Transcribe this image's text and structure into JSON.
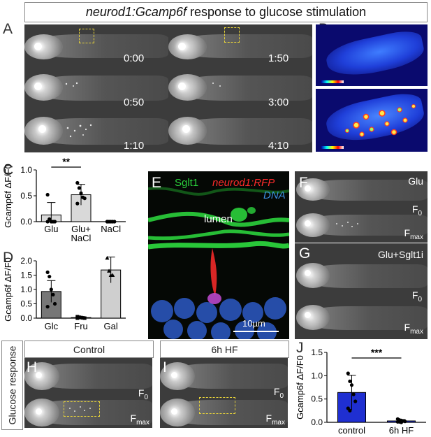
{
  "figure": {
    "title_italic": "neurod1:Gcamp6f",
    "title_rest": " response to glucose stimulation",
    "side_label": "Glucose response"
  },
  "panels": {
    "A": {
      "label": "A",
      "times": [
        "0:00",
        "0:50",
        "1:10",
        "1:50",
        "3:00",
        "4:10"
      ]
    },
    "B": {
      "label": "B"
    },
    "C": {
      "label": "C"
    },
    "D": {
      "label": "D"
    },
    "E": {
      "label": "E",
      "legend": {
        "green": "Sglt1",
        "red": "neurod1:RFP",
        "blue": "DNA"
      },
      "lumen": "lumen",
      "scale": "10µm"
    },
    "F": {
      "label": "F",
      "condition": "Glu",
      "f0": "F",
      "f0_sub": "0",
      "fmax": "F",
      "fmax_sub": "max"
    },
    "G": {
      "label": "G",
      "condition": "Glu+Sglt1i",
      "f0": "F",
      "f0_sub": "0",
      "fmax": "F",
      "fmax_sub": "max"
    },
    "H": {
      "label": "H",
      "header": "Control",
      "f0": "F",
      "f0_sub": "0",
      "fmax": "F",
      "fmax_sub": "max"
    },
    "I": {
      "label": "I",
      "header": "6h HF",
      "f0": "F",
      "f0_sub": "0",
      "fmax": "F",
      "fmax_sub": "max"
    },
    "J": {
      "label": "J"
    }
  },
  "colors": {
    "bar_C": "#d9d9d9",
    "bar_D_glc": "#777777",
    "bar_D_gal": "#cfcfcf",
    "bar_J": "#1f2fd1",
    "yellow_box": "#e6d23a",
    "sglt1": "#27d33a",
    "rfp": "#ff2b2b",
    "dna": "#3b8ee0"
  },
  "chart_data": [
    {
      "panel": "C",
      "type": "bar",
      "ylabel": "Gcamp6f ΔF/F0",
      "ylim": [
        0,
        1.0
      ],
      "yticks": [
        "0.0",
        "0.5",
        "1.0"
      ],
      "categories": [
        "Glu",
        "Glu+\nNaCl",
        "NaCl"
      ],
      "category_lines": [
        [
          "Glu"
        ],
        [
          "Glu+",
          "NaCl"
        ],
        [
          "NaCl"
        ]
      ],
      "values": [
        0.13,
        0.52,
        0.0
      ],
      "errors": [
        0.24,
        0.2,
        0.0
      ],
      "points": [
        [
          0.52,
          0.05,
          0.0,
          0.0,
          0.0,
          0.0
        ],
        [
          0.75,
          0.65,
          0.55,
          0.47,
          0.45,
          0.35
        ],
        [
          0,
          0,
          0,
          0,
          0,
          0
        ]
      ],
      "significance": {
        "from": 0,
        "to": 1,
        "text": "**"
      }
    },
    {
      "panel": "D",
      "type": "bar",
      "ylabel": "Gcamp6f ΔF/F0",
      "ylim": [
        0,
        2.0
      ],
      "yticks": [
        "0.0",
        "0.5",
        "1.0",
        "1.5",
        "2.0"
      ],
      "categories": [
        "Glc",
        "Fru",
        "Gal"
      ],
      "values": [
        0.93,
        0.02,
        1.68
      ],
      "errors": [
        0.38,
        0.02,
        0.45
      ],
      "points": [
        [
          1.6,
          1.45,
          1.0,
          0.82,
          0.5,
          0.4
        ],
        [
          0.05,
          0.03,
          0.02,
          0.01,
          0.0,
          0.0
        ],
        [
          2.1,
          1.65,
          1.5,
          1.5
        ]
      ]
    },
    {
      "panel": "J",
      "type": "bar",
      "ylabel": "Gcamp6f ΔF/F0",
      "ylim": [
        0,
        1.5
      ],
      "yticks": [
        "0.0",
        "0.5",
        "1.0",
        "1.5"
      ],
      "categories": [
        "control",
        "6h HF"
      ],
      "values": [
        0.64,
        0.03
      ],
      "errors": [
        0.37,
        0.03
      ],
      "points": [
        [
          1.05,
          0.88,
          0.8,
          0.6,
          0.45,
          0.3,
          0.25
        ],
        [
          0.07,
          0.05,
          0.04,
          0.03,
          0.02,
          0.01,
          0.01,
          0.0
        ]
      ],
      "significance": {
        "from": 0,
        "to": 1,
        "text": "***"
      }
    }
  ]
}
